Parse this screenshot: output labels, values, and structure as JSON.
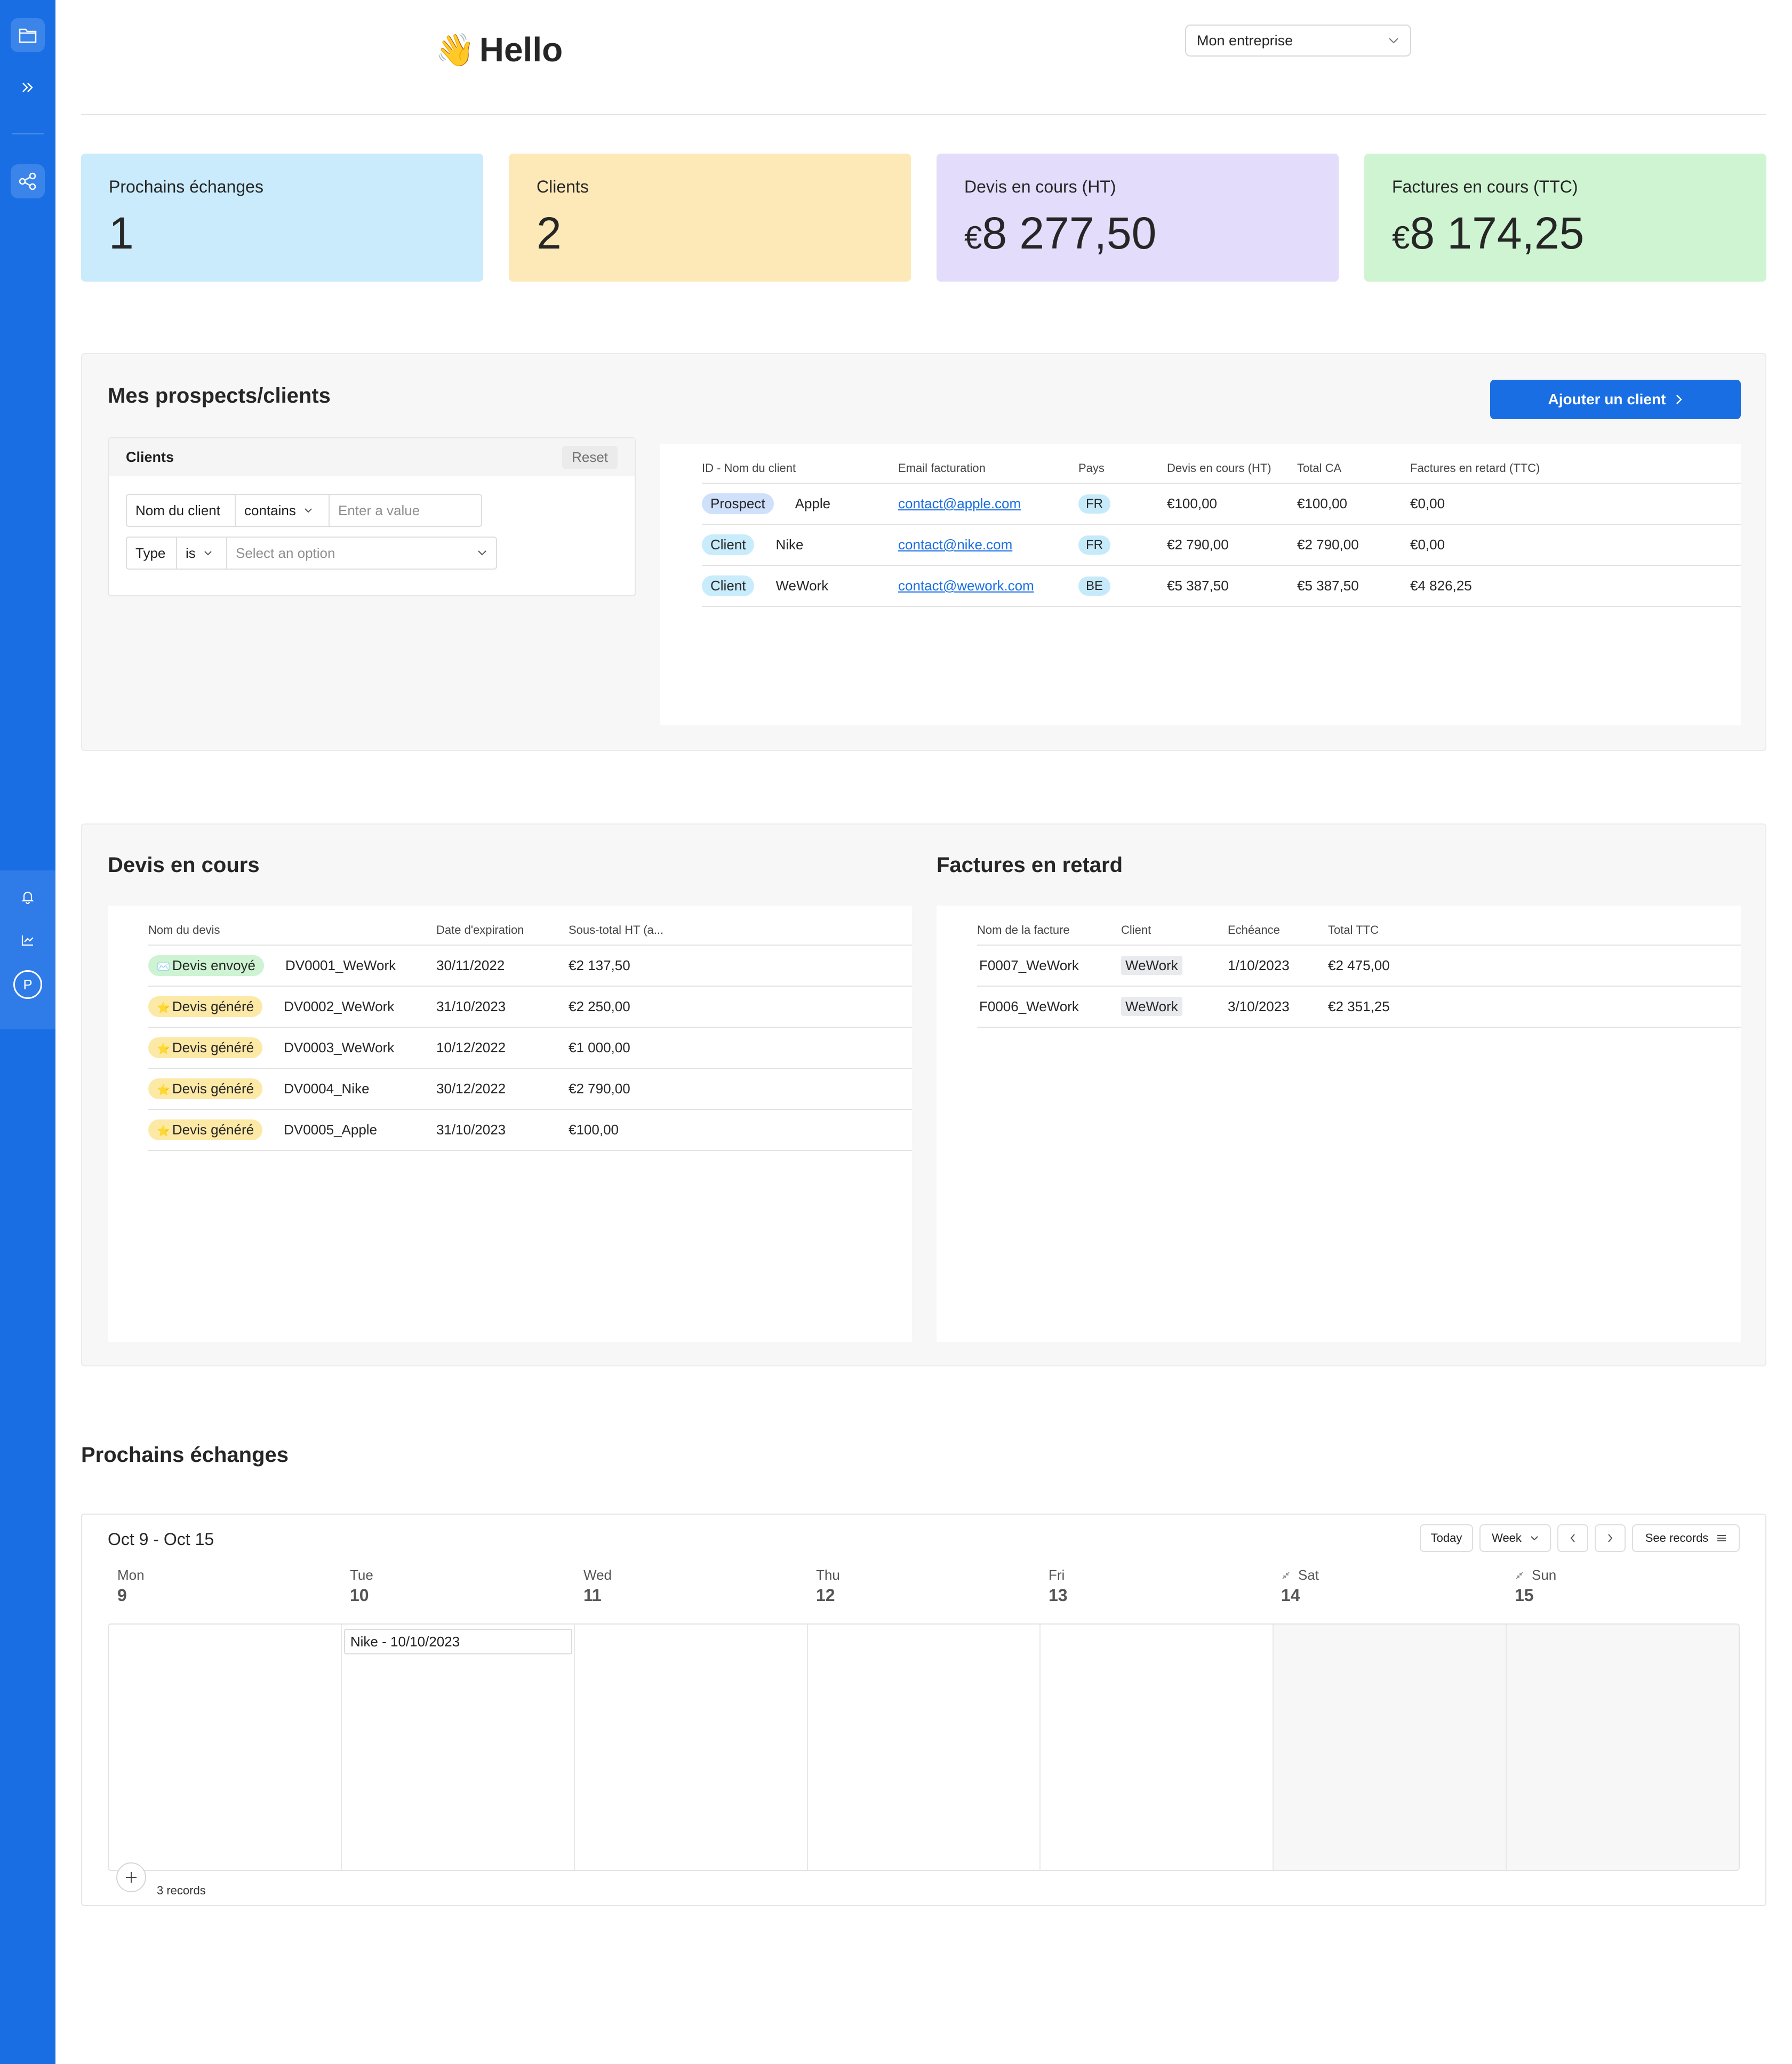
{
  "header": {
    "greeting": "Hello",
    "greeting_emoji": "👋",
    "company_select": "Mon entreprise"
  },
  "kpis": [
    {
      "label": "Prochains échanges",
      "value": "1",
      "currency": "",
      "color": "#c9ebfb"
    },
    {
      "label": "Clients",
      "value": "2",
      "currency": "",
      "color": "#fde9b8"
    },
    {
      "label": "Devis en cours (HT)",
      "value": "8 277,50",
      "currency": "€",
      "color": "#e3dcfb"
    },
    {
      "label": "Factures en cours (TTC)",
      "value": "8 174,25",
      "currency": "€",
      "color": "#cff4d2"
    }
  ],
  "clients_section": {
    "title": "Mes prospects/clients",
    "add_button": "Ajouter un client",
    "filter": {
      "title": "Clients",
      "reset": "Reset",
      "row1": {
        "field": "Nom du client",
        "op": "contains",
        "placeholder": "Enter a value"
      },
      "row2": {
        "field": "Type",
        "op": "is",
        "placeholder": "Select an option"
      }
    },
    "table": {
      "headers": [
        "ID - Nom du client",
        "Email facturation",
        "Pays",
        "Devis en cours (HT)",
        "Total CA",
        "Factures en retard (TTC)"
      ],
      "rows": [
        {
          "type": "Prospect",
          "name": "Apple",
          "email": "contact@apple.com",
          "country": "FR",
          "devis": "€100,00",
          "ca": "€100,00",
          "retard": "€0,00"
        },
        {
          "type": "Client",
          "name": "Nike",
          "email": "contact@nike.com",
          "country": "FR",
          "devis": "€2 790,00",
          "ca": "€2 790,00",
          "retard": "€0,00"
        },
        {
          "type": "Client",
          "name": "WeWork",
          "email": "contact@wework.com",
          "country": "BE",
          "devis": "€5 387,50",
          "ca": "€5 387,50",
          "retard": "€4 826,25"
        }
      ]
    }
  },
  "devis_section": {
    "title": "Devis en cours",
    "headers": [
      "Nom du devis",
      "Date d'expiration",
      "Sous-total HT (a..."
    ],
    "rows": [
      {
        "status": "Devis envoyé",
        "emoji": "✉️",
        "name": "DV0001_WeWork",
        "date": "30/11/2022",
        "total": "€2 137,50"
      },
      {
        "status": "Devis généré",
        "emoji": "⭐",
        "name": "DV0002_WeWork",
        "date": "31/10/2023",
        "total": "€2 250,00"
      },
      {
        "status": "Devis généré",
        "emoji": "⭐",
        "name": "DV0003_WeWork",
        "date": "10/12/2022",
        "total": "€1 000,00"
      },
      {
        "status": "Devis généré",
        "emoji": "⭐",
        "name": "DV0004_Nike",
        "date": "30/12/2022",
        "total": "€2 790,00"
      },
      {
        "status": "Devis généré",
        "emoji": "⭐",
        "name": "DV0005_Apple",
        "date": "31/10/2023",
        "total": "€100,00"
      }
    ]
  },
  "factures_section": {
    "title": "Factures en retard",
    "headers": [
      "Nom de la facture",
      "Client",
      "Echéance",
      "Total TTC"
    ],
    "rows": [
      {
        "name": "F0007_WeWork",
        "client": "WeWork",
        "due": "1/10/2023",
        "total": "€2 475,00"
      },
      {
        "name": "F0006_WeWork",
        "client": "WeWork",
        "due": "3/10/2023",
        "total": "€2 351,25"
      }
    ]
  },
  "calendar": {
    "title": "Prochains échanges",
    "range": "Oct 9 - Oct 15",
    "today": "Today",
    "view": "Week",
    "see_records": "See records",
    "days": [
      {
        "name": "Mon",
        "num": "9"
      },
      {
        "name": "Tue",
        "num": "10"
      },
      {
        "name": "Wed",
        "num": "11"
      },
      {
        "name": "Thu",
        "num": "12"
      },
      {
        "name": "Fri",
        "num": "13"
      },
      {
        "name": "Sat",
        "num": "14"
      },
      {
        "name": "Sun",
        "num": "15"
      }
    ],
    "event": "Nike - 10/10/2023",
    "records": "3 records"
  },
  "sidebar": {
    "avatar": "P"
  }
}
